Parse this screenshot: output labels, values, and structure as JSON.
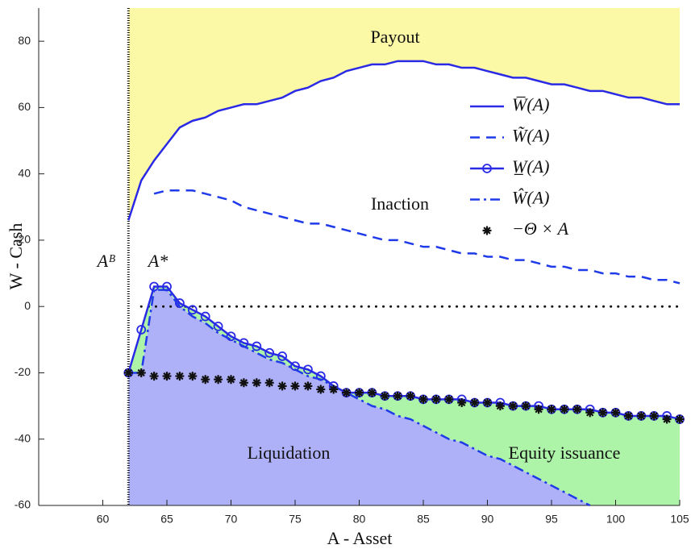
{
  "chart_data": {
    "type": "line",
    "xlabel": "A - Asset",
    "ylabel": "W - Cash",
    "xlim": [
      55,
      105
    ],
    "ylim": [
      -60,
      90
    ],
    "xticks": [
      60,
      65,
      70,
      75,
      80,
      85,
      90,
      95,
      100,
      105
    ],
    "yticks": [
      -60,
      -40,
      -20,
      0,
      20,
      40,
      60,
      80
    ],
    "legend": "right",
    "x": [
      62,
      63,
      64,
      65,
      66,
      67,
      68,
      69,
      70,
      71,
      72,
      73,
      74,
      75,
      76,
      77,
      78,
      79,
      80,
      81,
      82,
      83,
      84,
      85,
      86,
      87,
      88,
      89,
      90,
      91,
      92,
      93,
      94,
      95,
      96,
      97,
      98,
      99,
      100,
      101,
      102,
      103,
      104,
      105
    ],
    "series": [
      {
        "name": "W̅(A)",
        "color": "#2a2ae6",
        "line_style": "solid",
        "marker": "none",
        "values": [
          26,
          38,
          44,
          49,
          54,
          56,
          57,
          59,
          60,
          61,
          61,
          62,
          63,
          65,
          66,
          68,
          69,
          71,
          72,
          73,
          73,
          74,
          74,
          74,
          73,
          73,
          72,
          72,
          71,
          70,
          69,
          69,
          68,
          67,
          67,
          66,
          65,
          65,
          64,
          63,
          63,
          62,
          61,
          61
        ]
      },
      {
        "name": "W̃(A)",
        "color": "#1f3ae8",
        "line_style": "dashed",
        "marker": "none",
        "values": [
          null,
          null,
          34,
          35,
          35,
          35,
          34,
          33,
          32,
          30,
          29,
          28,
          27,
          26,
          25,
          25,
          24,
          23,
          22,
          21,
          20,
          20,
          19,
          18,
          18,
          17,
          16,
          16,
          15,
          15,
          14,
          14,
          13,
          12,
          12,
          11,
          11,
          10,
          10,
          9,
          9,
          8,
          8,
          7
        ]
      },
      {
        "name": "W̲(A)",
        "color": "#2a2ae6",
        "line_style": "solid",
        "marker": "circle",
        "values": [
          -20,
          -7,
          6,
          6,
          1,
          -1,
          -3,
          -6,
          -9,
          -11,
          -12,
          -14,
          -15,
          -18,
          -19,
          -21,
          -24,
          -26,
          -26,
          -26,
          -27,
          -27,
          -27,
          -28,
          -28,
          -28,
          -28,
          -29,
          -29,
          -29,
          -30,
          -30,
          -30,
          -31,
          -31,
          -31,
          -31,
          -32,
          -32,
          -33,
          -33,
          -33,
          -33,
          -34
        ]
      },
      {
        "name": "Ŵ(A)",
        "color": "#1f3ae8",
        "line_style": "dashdot",
        "marker": "none",
        "values": [
          -20,
          -20,
          5,
          5,
          0,
          -3,
          -5,
          -8,
          -10,
          -12,
          -14,
          -16,
          -17,
          -19,
          -21,
          -22,
          -24,
          -26,
          -28,
          -30,
          -31,
          -33,
          -34,
          -36,
          -38,
          -40,
          -41,
          -43,
          -45,
          -46,
          -48,
          -50,
          -52,
          -54,
          -56,
          -58,
          -60,
          null,
          null,
          null,
          null,
          null,
          null,
          null
        ]
      },
      {
        "name": "−Θ × A",
        "color": "#111111",
        "line_style": "none",
        "marker": "star",
        "values": [
          -20,
          -20,
          -21,
          -21,
          -21,
          -21,
          -22,
          -22,
          -22,
          -23,
          -23,
          -23,
          -24,
          -24,
          -24,
          -25,
          -25,
          -26,
          -26,
          -26,
          -27,
          -27,
          -27,
          -28,
          -28,
          -28,
          -29,
          -29,
          -29,
          -30,
          -30,
          -30,
          -31,
          -31,
          -31,
          -31,
          -32,
          -32,
          -32,
          -33,
          -33,
          -33,
          -34,
          -34
        ]
      }
    ],
    "regions": [
      {
        "label": "Payout",
        "color": "#fbf8a6"
      },
      {
        "label": "Inaction"
      },
      {
        "label": "Liquidation",
        "color": "#afb1f8"
      },
      {
        "label": "Equity issuance",
        "color": "#adf4a8"
      }
    ],
    "annotations": [
      "Aᴮ",
      "A*"
    ]
  }
}
